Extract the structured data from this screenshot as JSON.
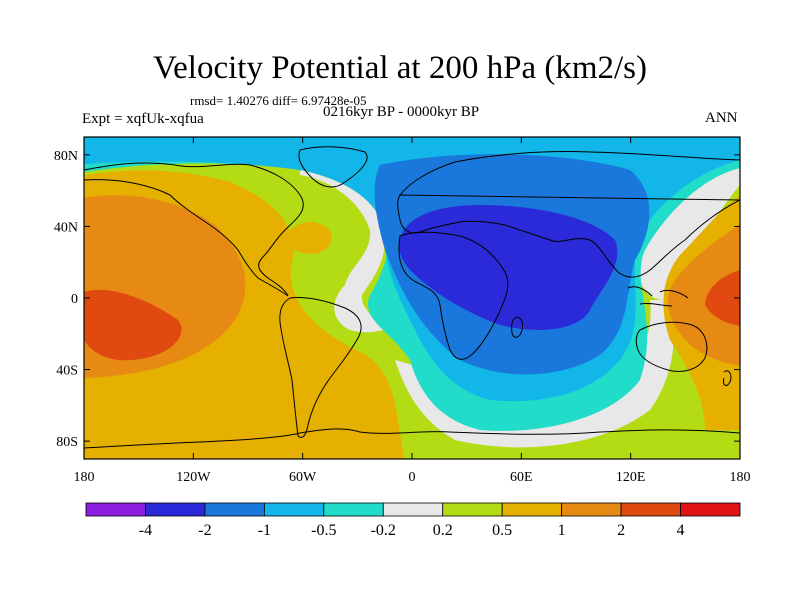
{
  "header": {
    "title": "Velocity Potential at 200 hPa (km2/s)",
    "stats": "rmsd= 1.40276 diff= 6.97428e-05",
    "experiment": "Expt = xqfUk-xqfua",
    "period": "0216kyr BP - 0000kyr BP",
    "season": "ANN"
  },
  "map": {
    "projection": "cylindrical-equidistant",
    "lon_range": [
      -180,
      180
    ],
    "lat_range": [
      -90,
      90
    ],
    "x_ticks": [
      {
        "value": -180,
        "label": "180"
      },
      {
        "value": -120,
        "label": "120W"
      },
      {
        "value": -60,
        "label": "60W"
      },
      {
        "value": 0,
        "label": "0"
      },
      {
        "value": 60,
        "label": "60E"
      },
      {
        "value": 120,
        "label": "120E"
      },
      {
        "value": 180,
        "label": "180"
      }
    ],
    "y_ticks": [
      {
        "value": 80,
        "label": "80N"
      },
      {
        "value": 40,
        "label": "40N"
      },
      {
        "value": 0,
        "label": "0"
      },
      {
        "value": -40,
        "label": "40S"
      },
      {
        "value": -80,
        "label": "80S"
      }
    ]
  },
  "colorbar": {
    "colors": [
      "#8c1fe0",
      "#2a2ad8",
      "#1a78dc",
      "#12b6e8",
      "#20dcc8",
      "#e8e8e8",
      "#b4dc14",
      "#e6b000",
      "#e68a14",
      "#e04a10",
      "#e01414"
    ],
    "labels": [
      "-4",
      "-2",
      "-1",
      "-0.5",
      "-0.2",
      "0.2",
      "0.5",
      "1",
      "2",
      "4"
    ]
  }
}
